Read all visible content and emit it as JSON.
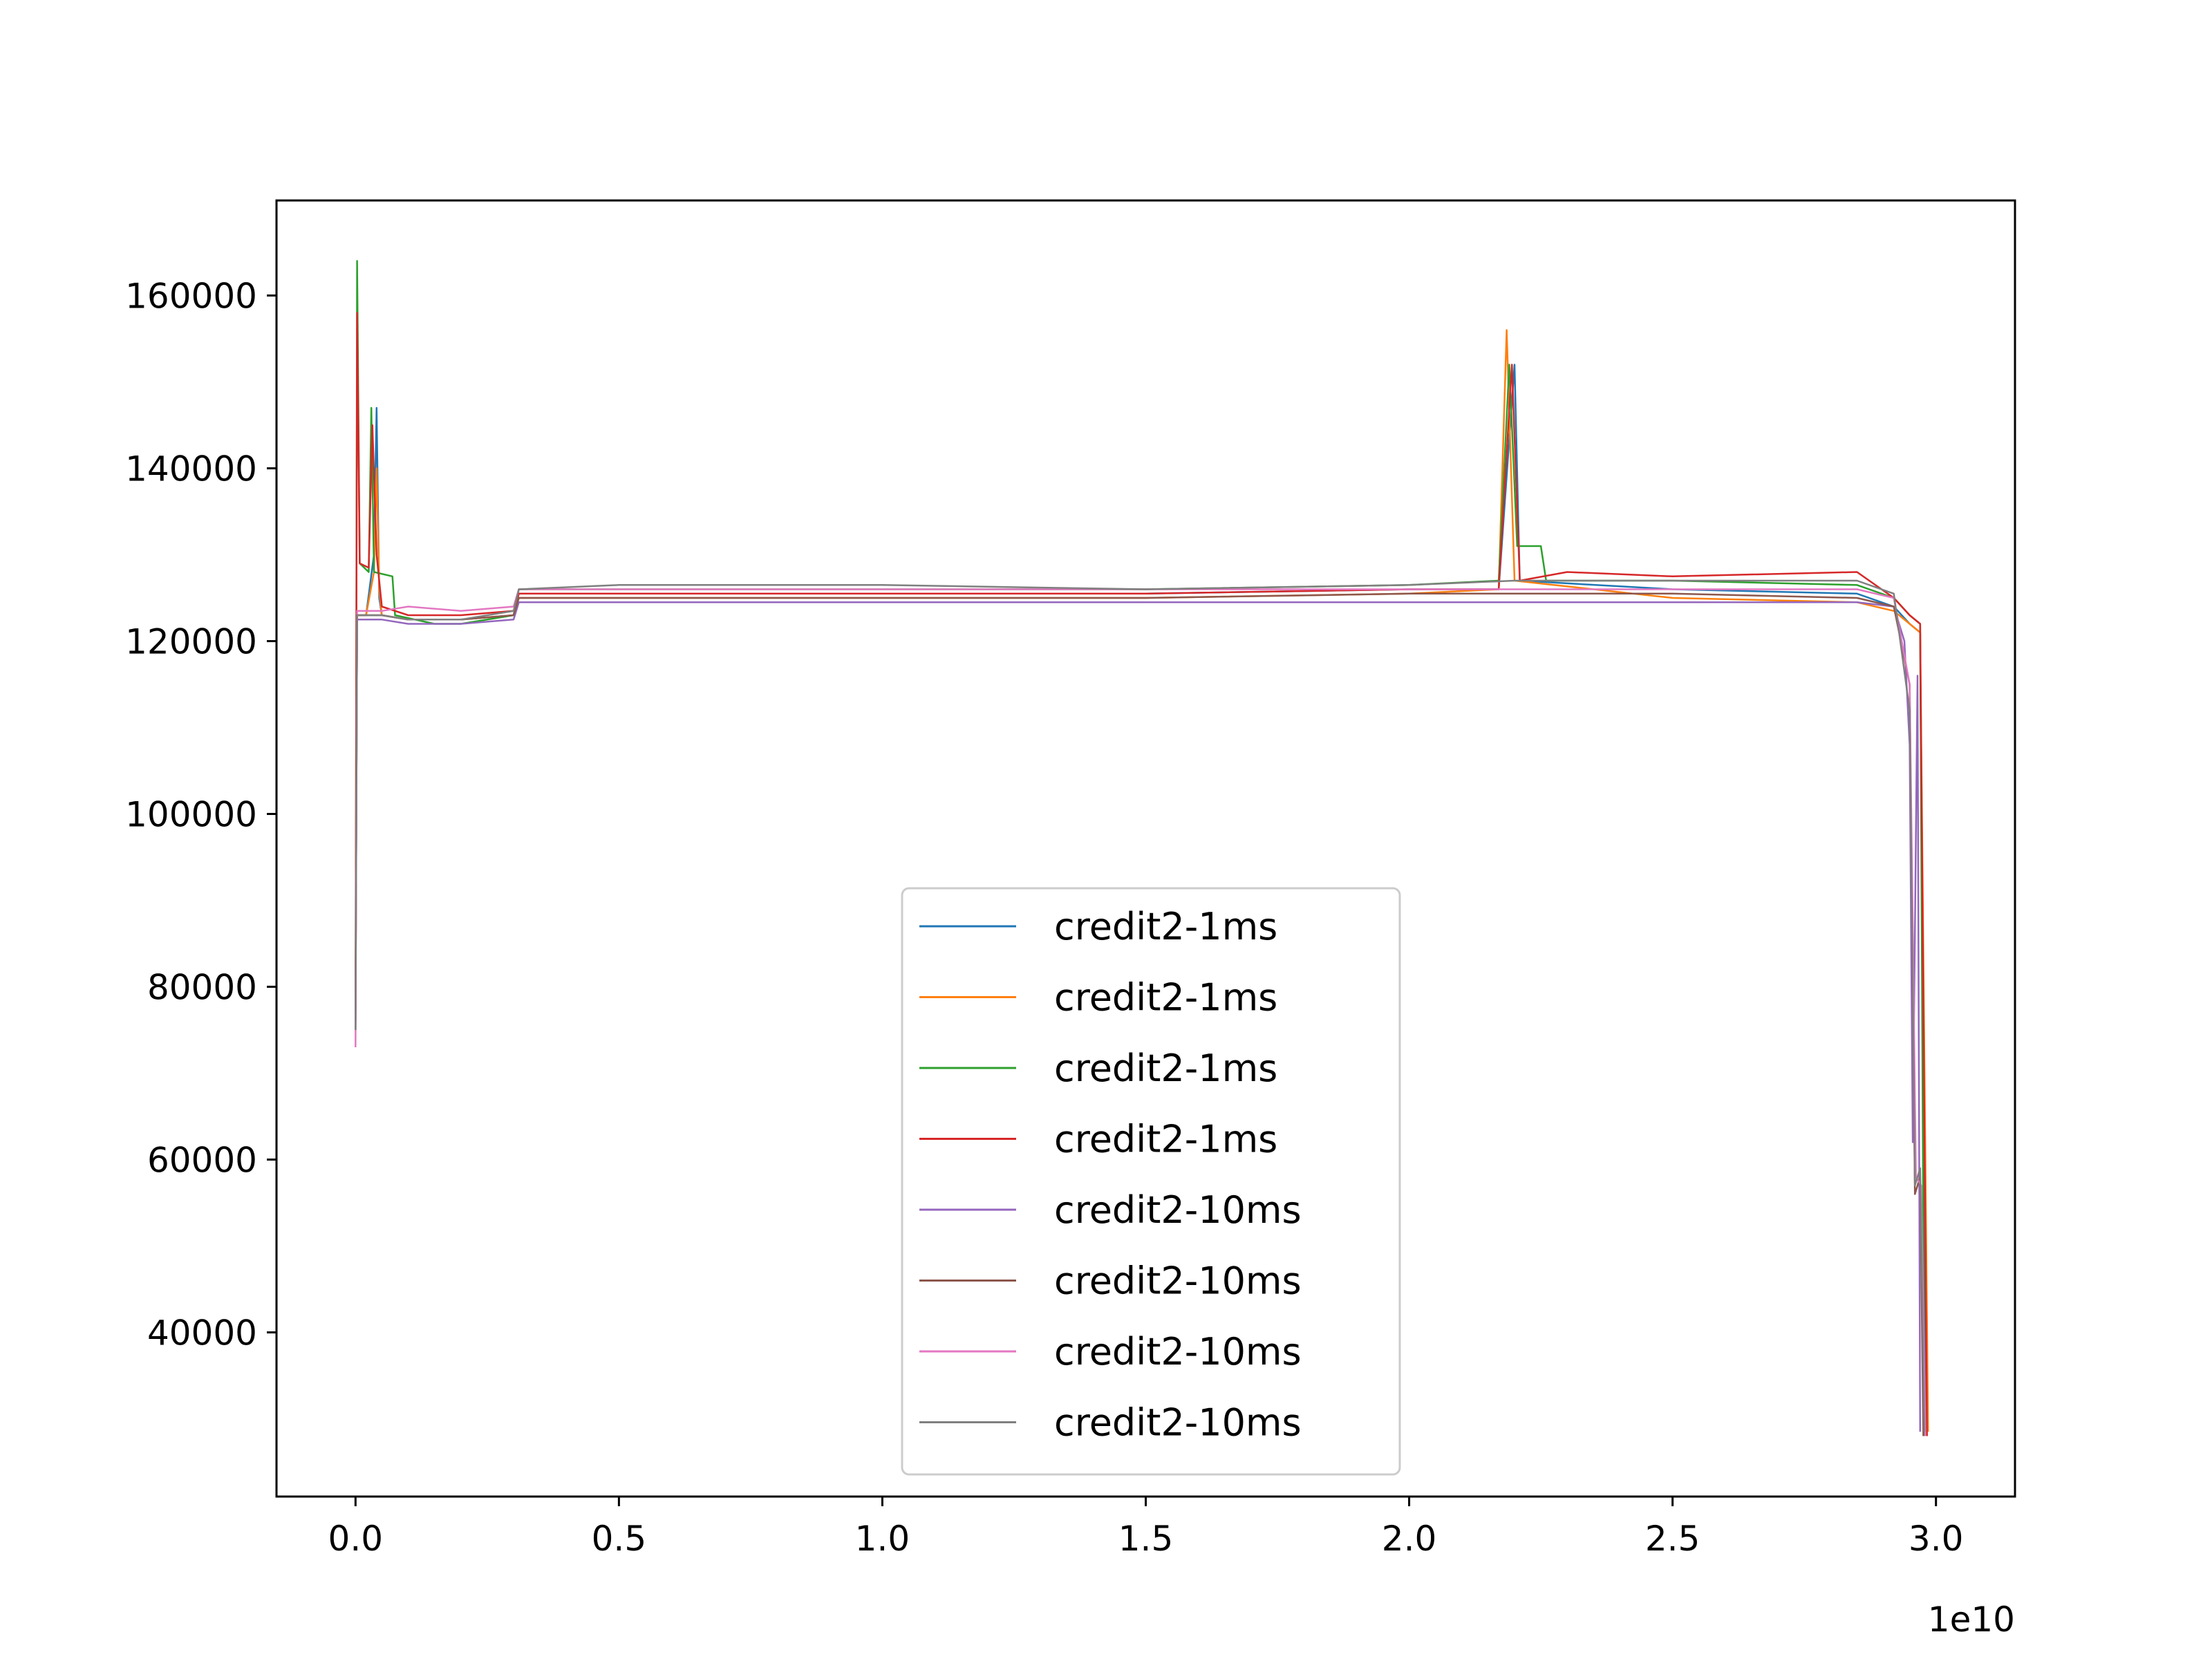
{
  "chart_data": {
    "type": "line",
    "title": "",
    "xlabel": "",
    "ylabel": "",
    "x_offset_label": "1e10",
    "xlim": [
      -1500000000,
      31500000000
    ],
    "ylim": [
      21000,
      171000
    ],
    "x_ticks": [
      {
        "value": 0,
        "label": "0.0"
      },
      {
        "value": 5000000000,
        "label": "0.5"
      },
      {
        "value": 10000000000,
        "label": "1.0"
      },
      {
        "value": 15000000000,
        "label": "1.5"
      },
      {
        "value": 20000000000,
        "label": "2.0"
      },
      {
        "value": 25000000000,
        "label": "2.5"
      },
      {
        "value": 30000000000,
        "label": "3.0"
      }
    ],
    "y_ticks": [
      {
        "value": 40000,
        "label": "40000"
      },
      {
        "value": 60000,
        "label": "60000"
      },
      {
        "value": 80000,
        "label": "80000"
      },
      {
        "value": 100000,
        "label": "100000"
      },
      {
        "value": 120000,
        "label": "120000"
      },
      {
        "value": 140000,
        "label": "140000"
      },
      {
        "value": 160000,
        "label": "160000"
      }
    ],
    "grid": false,
    "legend_position": "lower center",
    "series": [
      {
        "name": "credit2-1ms",
        "color": "#1f77b4",
        "points": [
          [
            0,
            76000
          ],
          [
            30000000,
            123000
          ],
          [
            200000000,
            123000
          ],
          [
            350000000,
            130000
          ],
          [
            400000000,
            147000
          ],
          [
            450000000,
            125000
          ],
          [
            500000000,
            123000
          ],
          [
            1000000000,
            122500
          ],
          [
            2000000000,
            122500
          ],
          [
            3000000000,
            123000
          ],
          [
            3100000000,
            125500
          ],
          [
            5000000000,
            125500
          ],
          [
            10000000000,
            125500
          ],
          [
            15000000000,
            125500
          ],
          [
            20000000000,
            126000
          ],
          [
            21700000000,
            126000
          ],
          [
            22000000000,
            152000
          ],
          [
            22100000000,
            127000
          ],
          [
            25000000000,
            126000
          ],
          [
            28500000000,
            125500
          ],
          [
            29200000000,
            124000
          ],
          [
            29500000000,
            122000
          ],
          [
            29700000000,
            121000
          ],
          [
            29800000000,
            28000
          ]
        ]
      },
      {
        "name": "credit2-1ms",
        "color": "#ff7f0e",
        "points": [
          [
            0,
            77000
          ],
          [
            30000000,
            123000
          ],
          [
            200000000,
            123000
          ],
          [
            350000000,
            128000
          ],
          [
            400000000,
            140000
          ],
          [
            450000000,
            126000
          ],
          [
            500000000,
            123000
          ],
          [
            1000000000,
            122500
          ],
          [
            2000000000,
            122500
          ],
          [
            3000000000,
            123000
          ],
          [
            3100000000,
            125000
          ],
          [
            5000000000,
            125000
          ],
          [
            10000000000,
            125000
          ],
          [
            15000000000,
            125000
          ],
          [
            20000000000,
            125500
          ],
          [
            21700000000,
            126000
          ],
          [
            21850000000,
            156000
          ],
          [
            22000000000,
            127000
          ],
          [
            25000000000,
            125000
          ],
          [
            28500000000,
            124500
          ],
          [
            29200000000,
            123500
          ],
          [
            29500000000,
            122000
          ],
          [
            29700000000,
            121000
          ],
          [
            29850000000,
            28500
          ]
        ]
      },
      {
        "name": "credit2-1ms",
        "color": "#2ca02c",
        "points": [
          [
            0,
            75000
          ],
          [
            30000000,
            164000
          ],
          [
            80000000,
            129000
          ],
          [
            250000000,
            128000
          ],
          [
            300000000,
            147000
          ],
          [
            350000000,
            128000
          ],
          [
            700000000,
            127500
          ],
          [
            750000000,
            123000
          ],
          [
            1500000000,
            122000
          ],
          [
            2000000000,
            122000
          ],
          [
            3000000000,
            123000
          ],
          [
            3100000000,
            126000
          ],
          [
            5000000000,
            126000
          ],
          [
            10000000000,
            126000
          ],
          [
            15000000000,
            126000
          ],
          [
            20000000000,
            126500
          ],
          [
            21700000000,
            127000
          ],
          [
            21900000000,
            152000
          ],
          [
            22050000000,
            131000
          ],
          [
            22500000000,
            131000
          ],
          [
            22600000000,
            127000
          ],
          [
            25000000000,
            127000
          ],
          [
            28500000000,
            126500
          ],
          [
            29200000000,
            125000
          ],
          [
            29500000000,
            123000
          ],
          [
            29700000000,
            122000
          ],
          [
            29780000000,
            28000
          ]
        ]
      },
      {
        "name": "credit2-1ms",
        "color": "#d62728",
        "points": [
          [
            0,
            76000
          ],
          [
            30000000,
            158000
          ],
          [
            80000000,
            129000
          ],
          [
            250000000,
            128500
          ],
          [
            320000000,
            145000
          ],
          [
            400000000,
            130000
          ],
          [
            500000000,
            124000
          ],
          [
            1000000000,
            123000
          ],
          [
            2000000000,
            123000
          ],
          [
            3000000000,
            123500
          ],
          [
            3100000000,
            125500
          ],
          [
            5000000000,
            125500
          ],
          [
            10000000000,
            125500
          ],
          [
            15000000000,
            125500
          ],
          [
            20000000000,
            126000
          ],
          [
            21700000000,
            126000
          ],
          [
            21950000000,
            152000
          ],
          [
            22100000000,
            127000
          ],
          [
            23000000000,
            128000
          ],
          [
            25000000000,
            127500
          ],
          [
            28500000000,
            128000
          ],
          [
            29200000000,
            125000
          ],
          [
            29500000000,
            123000
          ],
          [
            29700000000,
            122000
          ],
          [
            29830000000,
            28000
          ]
        ]
      },
      {
        "name": "credit2-10ms",
        "color": "#9467bd",
        "points": [
          [
            0,
            75000
          ],
          [
            30000000,
            122500
          ],
          [
            500000000,
            122500
          ],
          [
            1000000000,
            122000
          ],
          [
            2000000000,
            122000
          ],
          [
            3000000000,
            122500
          ],
          [
            3100000000,
            124500
          ],
          [
            5000000000,
            124500
          ],
          [
            10000000000,
            124500
          ],
          [
            15000000000,
            124500
          ],
          [
            20000000000,
            124500
          ],
          [
            25000000000,
            124500
          ],
          [
            28500000000,
            124500
          ],
          [
            29200000000,
            124000
          ],
          [
            29400000000,
            120000
          ],
          [
            29500000000,
            108000
          ],
          [
            29560000000,
            62000
          ],
          [
            29650000000,
            116000
          ],
          [
            29700000000,
            28500
          ]
        ]
      },
      {
        "name": "credit2-10ms",
        "color": "#8c564b",
        "points": [
          [
            0,
            75000
          ],
          [
            30000000,
            123000
          ],
          [
            500000000,
            123000
          ],
          [
            1000000000,
            122500
          ],
          [
            2000000000,
            122500
          ],
          [
            3000000000,
            123000
          ],
          [
            3100000000,
            125000
          ],
          [
            5000000000,
            125000
          ],
          [
            10000000000,
            125000
          ],
          [
            15000000000,
            125000
          ],
          [
            20000000000,
            125500
          ],
          [
            25000000000,
            125500
          ],
          [
            28500000000,
            125000
          ],
          [
            29200000000,
            124000
          ],
          [
            29500000000,
            115000
          ],
          [
            29600000000,
            56000
          ],
          [
            29700000000,
            58000
          ],
          [
            29760000000,
            28000
          ]
        ]
      },
      {
        "name": "credit2-10ms",
        "color": "#e377c2",
        "points": [
          [
            0,
            73000
          ],
          [
            30000000,
            123500
          ],
          [
            500000000,
            123500
          ],
          [
            1000000000,
            124000
          ],
          [
            2000000000,
            123500
          ],
          [
            3000000000,
            124000
          ],
          [
            3100000000,
            126000
          ],
          [
            5000000000,
            126000
          ],
          [
            10000000000,
            126000
          ],
          [
            15000000000,
            126000
          ],
          [
            20000000000,
            126000
          ],
          [
            25000000000,
            126000
          ],
          [
            28500000000,
            126000
          ],
          [
            29200000000,
            125000
          ],
          [
            29500000000,
            115000
          ],
          [
            29620000000,
            58000
          ],
          [
            29720000000,
            57000
          ],
          [
            29800000000,
            28000
          ]
        ]
      },
      {
        "name": "credit2-10ms",
        "color": "#7f7f7f",
        "points": [
          [
            0,
            75000
          ],
          [
            30000000,
            123000
          ],
          [
            500000000,
            123000
          ],
          [
            1000000000,
            122500
          ],
          [
            2000000000,
            122500
          ],
          [
            3000000000,
            123500
          ],
          [
            3100000000,
            126000
          ],
          [
            5000000000,
            126500
          ],
          [
            10000000000,
            126500
          ],
          [
            15000000000,
            126000
          ],
          [
            20000000000,
            126500
          ],
          [
            22000000000,
            127000
          ],
          [
            25000000000,
            127000
          ],
          [
            28500000000,
            127000
          ],
          [
            29200000000,
            125500
          ],
          [
            29500000000,
            112000
          ],
          [
            29600000000,
            57000
          ],
          [
            29700000000,
            59000
          ],
          [
            29780000000,
            28500
          ]
        ]
      }
    ]
  }
}
